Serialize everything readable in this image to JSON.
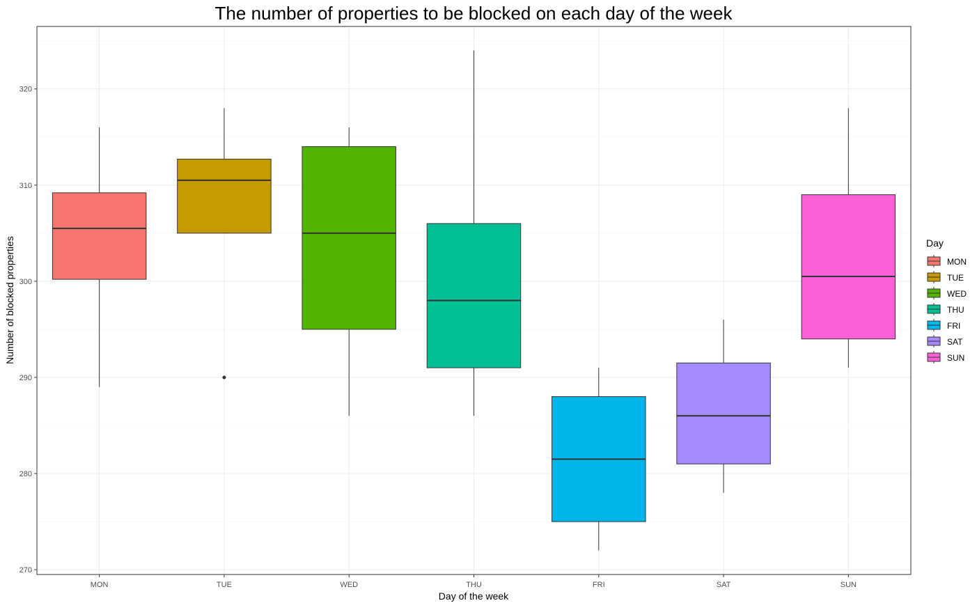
{
  "chart_data": {
    "type": "boxplot",
    "title": "The number of properties to be blocked on each day of the week",
    "xlabel": "Day of the week",
    "ylabel": "Number of blocked properties",
    "ylim": [
      269.5,
      326.5
    ],
    "y_ticks": [
      270,
      280,
      290,
      300,
      310,
      320
    ],
    "grid": true,
    "legend": {
      "title": "Day",
      "position": "right"
    },
    "categories": [
      "MON",
      "TUE",
      "WED",
      "THU",
      "FRI",
      "SAT",
      "SUN"
    ],
    "boxes": [
      {
        "category": "MON",
        "color": "#F8766D",
        "whisker_low": 289,
        "q1": 300.2,
        "median": 305.5,
        "q3": 309.2,
        "whisker_high": 316,
        "outliers": []
      },
      {
        "category": "TUE",
        "color": "#C49A00",
        "whisker_low": 305,
        "q1": 305,
        "median": 310.5,
        "q3": 312.7,
        "whisker_high": 318,
        "outliers": [
          290
        ]
      },
      {
        "category": "WED",
        "color": "#53B400",
        "whisker_low": 286,
        "q1": 295,
        "median": 305,
        "q3": 314,
        "whisker_high": 316,
        "outliers": []
      },
      {
        "category": "THU",
        "color": "#00C094",
        "whisker_low": 286,
        "q1": 291,
        "median": 298,
        "q3": 306,
        "whisker_high": 324,
        "outliers": []
      },
      {
        "category": "FRI",
        "color": "#00B6EB",
        "whisker_low": 272,
        "q1": 275,
        "median": 281.5,
        "q3": 288,
        "whisker_high": 291,
        "outliers": []
      },
      {
        "category": "SAT",
        "color": "#A58AFF",
        "whisker_low": 278,
        "q1": 281,
        "median": 286,
        "q3": 291.5,
        "whisker_high": 296,
        "outliers": []
      },
      {
        "category": "SUN",
        "color": "#FB61D7",
        "whisker_low": 291,
        "q1": 294,
        "median": 300.5,
        "q3": 309,
        "whisker_high": 318,
        "outliers": []
      }
    ]
  }
}
